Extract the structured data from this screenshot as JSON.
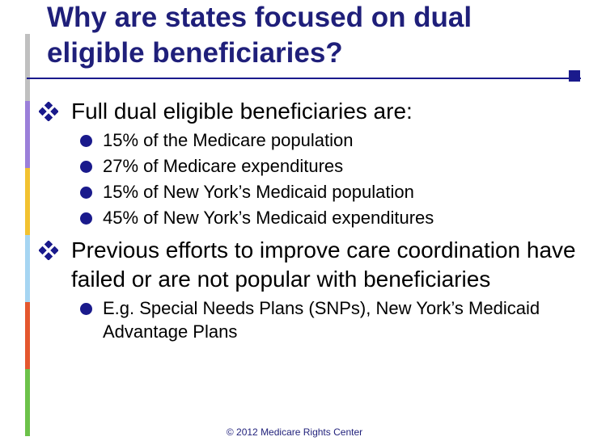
{
  "slide": {
    "title": "Why are states focused on dual eligible beneficiaries?",
    "sections": [
      {
        "text": "Full dual eligible beneficiaries are:",
        "items": [
          "15% of the Medicare population",
          "27% of Medicare expenditures",
          "15% of New York’s Medicaid population",
          "45% of New York’s Medicaid expenditures"
        ]
      },
      {
        "text": "Previous efforts to improve care coordination have failed or are not popular with beneficiaries",
        "items": [
          "E.g. Special Needs Plans (SNPs), New York’s Medicaid Advantage Plans"
        ]
      }
    ],
    "footer": "© 2012 Medicare Rights Center"
  },
  "icons": {
    "level1_bullet": "diamond-four-petal-icon",
    "level2_bullet": "filled-circle-icon"
  },
  "colors": {
    "title": "#1f1f7a",
    "accent": "#1a1a8c",
    "text": "#000000",
    "stripe": [
      "#c0c0c0",
      "#9b7fd9",
      "#f2c230",
      "#a6d5f2",
      "#e4572e",
      "#6cc24a"
    ]
  }
}
